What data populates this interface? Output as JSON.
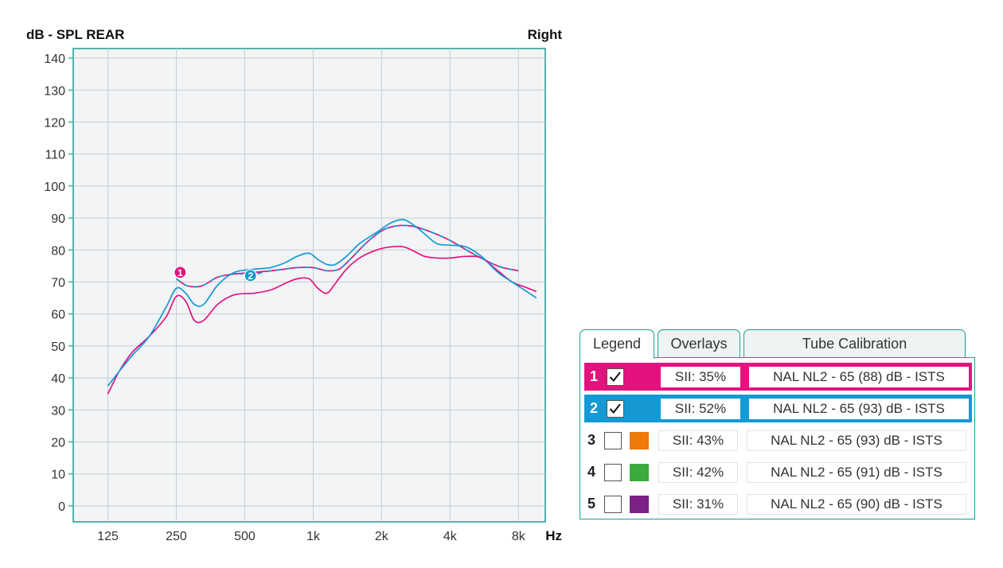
{
  "chart_data": {
    "type": "line",
    "title": "dB - SPL REAR",
    "ear": "Right",
    "xlabel": "Hz",
    "ylabel": "",
    "x_scale": "log",
    "xlim": [
      88,
      10500
    ],
    "ylim": [
      -5,
      143
    ],
    "y_ticks": [
      0,
      10,
      20,
      30,
      40,
      50,
      60,
      70,
      80,
      90,
      100,
      110,
      120,
      130,
      140
    ],
    "x_ticks": [
      {
        "value": 125,
        "label": "125"
      },
      {
        "value": 250,
        "label": "250"
      },
      {
        "value": 500,
        "label": "500"
      },
      {
        "value": 1000,
        "label": "1k"
      },
      {
        "value": 2000,
        "label": "2k"
      },
      {
        "value": 4000,
        "label": "4k"
      },
      {
        "value": 8000,
        "label": "8k"
      }
    ],
    "grid": true,
    "series": [
      {
        "marker": "1",
        "color": "#e3127f",
        "style": "solid",
        "x": [
          125,
          140,
          160,
          190,
          225,
          250,
          275,
          300,
          330,
          380,
          450,
          550,
          650,
          750,
          850,
          960,
          1050,
          1150,
          1250,
          1400,
          1600,
          1900,
          2200,
          2500,
          2800,
          3100,
          3500,
          4000,
          4700,
          5500,
          6500,
          7500,
          8500,
          9600
        ],
        "y": [
          35,
          42,
          48,
          53,
          59,
          65.5,
          64,
          58,
          58,
          63,
          66,
          66.5,
          67.5,
          69.5,
          71,
          71,
          68,
          66.5,
          69.5,
          74,
          77.5,
          80,
          81,
          81,
          79.5,
          78,
          77.5,
          77.5,
          78,
          77.5,
          73.5,
          70,
          68.5,
          67
        ]
      },
      {
        "marker": "2",
        "color": "#1499d4",
        "style": "solid",
        "x": [
          125,
          140,
          160,
          190,
          225,
          250,
          275,
          300,
          330,
          380,
          450,
          550,
          650,
          750,
          850,
          960,
          1050,
          1150,
          1250,
          1400,
          1600,
          1900,
          2200,
          2500,
          2800,
          3100,
          3500,
          4000,
          4700,
          5500,
          6500,
          7500,
          8500,
          9600
        ],
        "y": [
          37.5,
          42,
          47,
          53,
          62,
          68,
          66.5,
          63,
          63,
          69,
          73,
          74,
          74.5,
          76,
          78,
          79,
          77,
          75.5,
          75.5,
          78,
          82,
          85.5,
          88.5,
          89.5,
          87.5,
          85,
          82,
          81.5,
          81,
          78,
          73,
          70,
          67.5,
          65
        ]
      },
      {
        "marker": "",
        "color": "#e3127f",
        "style": "dashed",
        "x": [
          250,
          275,
          300,
          330,
          380,
          450,
          550,
          650,
          750,
          850,
          1000,
          1150,
          1300,
          1450,
          1700,
          2000,
          2300,
          2700,
          3200,
          4000,
          5000,
          6500,
          8000
        ],
        "y": [
          71,
          69,
          68.5,
          69,
          71.5,
          72.5,
          73,
          73.5,
          74,
          74.5,
          74.5,
          73.5,
          74,
          77,
          82,
          86,
          87.5,
          87.5,
          86,
          83,
          79,
          75,
          73.5
        ]
      },
      {
        "marker": "",
        "color": "#1499d4",
        "style": "dashed",
        "x": [
          250,
          275,
          300,
          330,
          380,
          450,
          550,
          650,
          750,
          850,
          1000,
          1150,
          1300,
          1450,
          1700,
          2000,
          2300,
          2700,
          3200,
          4000,
          5000,
          6500,
          8000
        ],
        "y": [
          71,
          69,
          68.5,
          69,
          71.5,
          72.5,
          72.5,
          73.5,
          74,
          74.5,
          74.5,
          73.5,
          74,
          77,
          82,
          86,
          87.5,
          87.5,
          86,
          83,
          79,
          75,
          73.5
        ]
      }
    ],
    "markers": [
      {
        "label": "1",
        "color": "#e3127f",
        "x": 260,
        "y": 73
      },
      {
        "label": "2",
        "color": "#1499d4",
        "x": 530,
        "y": 72
      }
    ]
  },
  "legend_panel": {
    "tabs": [
      {
        "label": "Legend",
        "active": true
      },
      {
        "label": "Overlays",
        "active": false
      },
      {
        "label": "Tube Calibration",
        "active": false
      }
    ],
    "rows": [
      {
        "num": "1",
        "checked": true,
        "selected": true,
        "color": "#e3127f",
        "sii": "SII: 35%",
        "target": "NAL NL2 - 65 (88) dB - ISTS"
      },
      {
        "num": "2",
        "checked": true,
        "selected": true,
        "color": "#1499d4",
        "sii": "SII: 52%",
        "target": "NAL NL2 - 65 (93) dB - ISTS"
      },
      {
        "num": "3",
        "checked": false,
        "selected": false,
        "color": "#ee7a0a",
        "sii": "SII: 43%",
        "target": "NAL NL2 - 65 (93) dB - ISTS"
      },
      {
        "num": "4",
        "checked": false,
        "selected": false,
        "color": "#3aab3c",
        "sii": "SII: 42%",
        "target": "NAL NL2 - 65 (91) dB - ISTS"
      },
      {
        "num": "5",
        "checked": false,
        "selected": false,
        "color": "#7c2287",
        "sii": "SII: 31%",
        "target": "NAL NL2 - 65 (90) dB - ISTS"
      }
    ]
  }
}
